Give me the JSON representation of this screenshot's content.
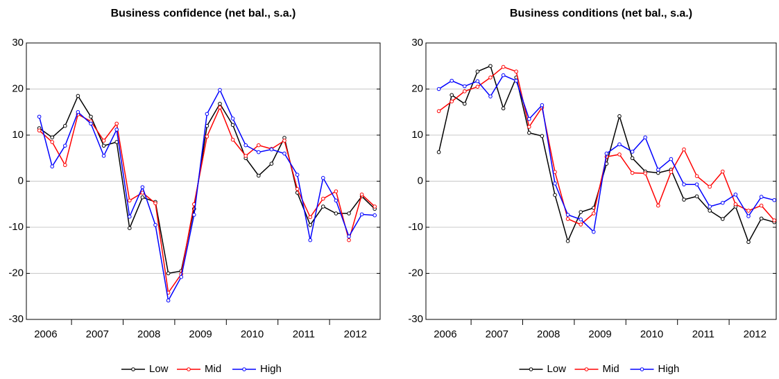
{
  "chart_data": [
    {
      "type": "line",
      "title": "Business confidence (net bal., s.a.)",
      "categories": [
        "2006",
        null,
        null,
        "2007",
        null,
        null,
        null,
        "2008",
        null,
        null,
        null,
        "2009",
        null,
        null,
        null,
        "2010",
        null,
        null,
        null,
        "2011",
        null,
        null,
        null,
        "2012",
        null,
        null,
        null
      ],
      "ylim": [
        -30,
        30
      ],
      "yticks": [
        -30,
        -20,
        -10,
        0,
        10,
        20,
        30
      ],
      "grid": true,
      "series": [
        {
          "name": "Low",
          "color": "#000000",
          "values": [
            11.5,
            9.5,
            12,
            18.5,
            14,
            7.7,
            8.5,
            -10.2,
            -3.5,
            -4.5,
            -20,
            -19.5,
            -6,
            12,
            16.8,
            12.2,
            5,
            1.2,
            3.8,
            9.4,
            -2.5,
            -9.5,
            -5.5,
            -7,
            -7,
            -3.3,
            -6
          ]
        },
        {
          "name": "Mid",
          "color": "#ff0000",
          "values": [
            11,
            8.5,
            3.5,
            14.5,
            13,
            8.8,
            12.5,
            -4.2,
            -2.5,
            -4.8,
            -24.2,
            -20.2,
            -5,
            9.7,
            16,
            9,
            5.5,
            7.8,
            7,
            8.8,
            -1.7,
            -7.8,
            -3.8,
            -2.2,
            -12.8,
            -2.9,
            -5.5
          ]
        },
        {
          "name": "High",
          "color": "#0000ff",
          "values": [
            14,
            3.2,
            7.7,
            15,
            12.5,
            5.5,
            11.2,
            -7.7,
            -1.3,
            -9.5,
            -25.9,
            -20.8,
            -7.3,
            14.6,
            19.8,
            13.6,
            7.8,
            6.3,
            6.9,
            6,
            1.4,
            -12.8,
            0.7,
            -4.2,
            -12,
            -7.2,
            -7.4
          ]
        }
      ]
    },
    {
      "type": "line",
      "title": "Business conditions (net bal., s.a.)",
      "categories": [
        "2006",
        null,
        null,
        "2007",
        null,
        null,
        null,
        "2008",
        null,
        null,
        null,
        "2009",
        null,
        null,
        null,
        "2010",
        null,
        null,
        null,
        "2011",
        null,
        null,
        null,
        "2012",
        null,
        null,
        null
      ],
      "ylim": [
        -30,
        30
      ],
      "yticks": [
        -30,
        -20,
        -10,
        0,
        10,
        20,
        30
      ],
      "grid": true,
      "series": [
        {
          "name": "Low",
          "color": "#000000",
          "values": [
            6.3,
            18.7,
            16.8,
            23.8,
            25,
            15.8,
            22.5,
            10.5,
            9.8,
            -3,
            -13,
            -6.7,
            -5.8,
            3.8,
            14.1,
            5,
            2.1,
            1.8,
            2.5,
            -4,
            -3.3,
            -6.4,
            -8.2,
            -5.5,
            -13.2,
            -8.1,
            -8.9
          ]
        },
        {
          "name": "Mid",
          "color": "#ff0000",
          "values": [
            15.2,
            17.3,
            19.5,
            20.5,
            22.5,
            24.8,
            23.8,
            11.8,
            16,
            2,
            -8.2,
            -9.4,
            -7,
            5.3,
            5.8,
            1.8,
            1.7,
            -5.3,
            2,
            6.9,
            1.1,
            -1.2,
            2.1,
            -5,
            -6.4,
            -5.3,
            -8.5
          ]
        },
        {
          "name": "High",
          "color": "#0000ff",
          "values": [
            20,
            21.8,
            20.6,
            21.7,
            18.4,
            23,
            21.8,
            13.5,
            16.5,
            -0.5,
            -7.3,
            -8.3,
            -11,
            6,
            8,
            6.4,
            9.5,
            2.5,
            4.8,
            -0.7,
            -0.7,
            -5.5,
            -4.7,
            -2.9,
            -7.6,
            -3.4,
            -4.1
          ]
        }
      ]
    }
  ]
}
